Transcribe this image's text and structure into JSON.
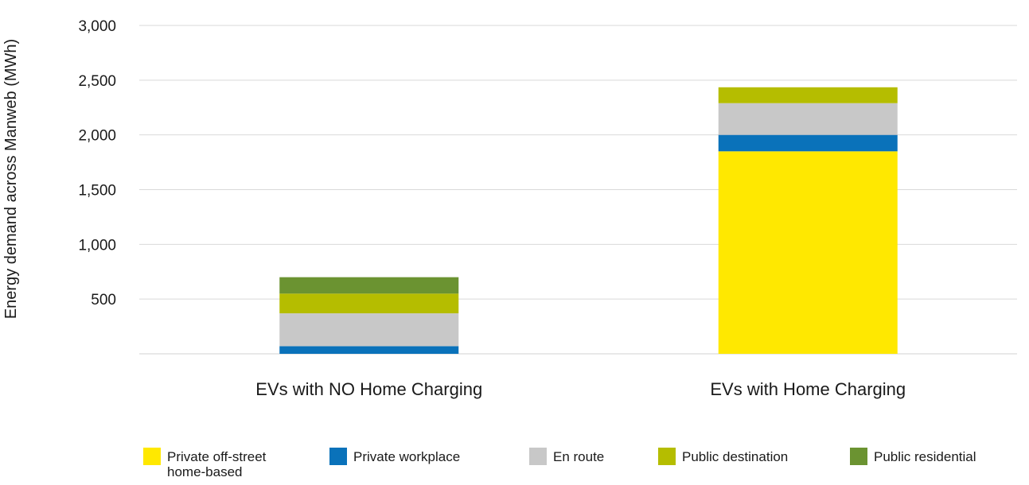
{
  "chart_data": {
    "type": "bar",
    "stacked": true,
    "title": "",
    "xlabel": "",
    "ylabel": "Energy demand across Manweb (MWh)",
    "ylim": [
      0,
      3000
    ],
    "yticks": [
      500,
      1000,
      1500,
      2000,
      2500,
      3000
    ],
    "ytick_labels": [
      "500",
      "1,000",
      "1,500",
      "2,000",
      "2,500",
      "3,000"
    ],
    "grid": true,
    "legend_position": "bottom",
    "categories": [
      "EVs with NO Home Charging",
      "EVs with Home Charging"
    ],
    "series": [
      {
        "name": "Private off-street home-based",
        "label": "Private off-street\nhome-based",
        "color": "#FFE800",
        "values": [
          0,
          1850
        ]
      },
      {
        "name": "Private workplace",
        "label": "Private workplace",
        "color": "#0A72BA",
        "values": [
          70,
          150
        ]
      },
      {
        "name": "En route",
        "label": "En route",
        "color": "#C8C8C8",
        "values": [
          300,
          290
        ]
      },
      {
        "name": "Public destination",
        "label": "Public destination",
        "color": "#B5BD00",
        "values": [
          180,
          145
        ]
      },
      {
        "name": "Public residential",
        "label": "Public residential",
        "color": "#6B9331",
        "values": [
          150,
          0
        ]
      }
    ]
  }
}
